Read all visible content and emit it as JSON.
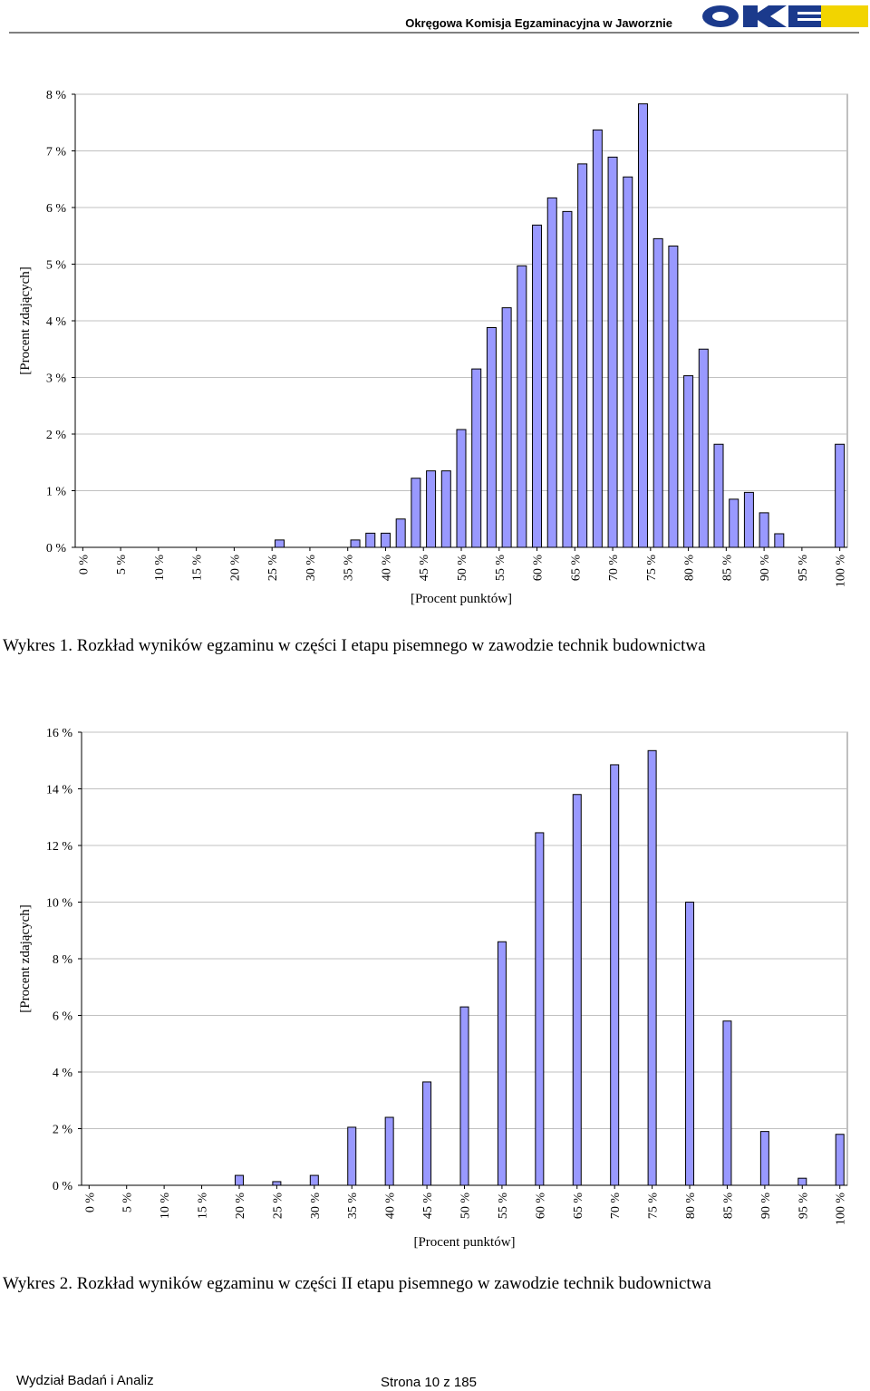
{
  "header": {
    "title": "Okręgowa Komisja Egzaminacyjna w Jaworznie"
  },
  "chart_data": [
    {
      "type": "bar",
      "title": "Wykres 1. Rozkład wyników egzaminu w części I etapu pisemnego w zawodzie technik budownictwa",
      "x_label": "[Procent punktów]",
      "y_label": "[Procent zdających]",
      "x": [
        0,
        2,
        4,
        6,
        8,
        10,
        12,
        14,
        16,
        18,
        20,
        22,
        24,
        26,
        28,
        30,
        32,
        34,
        36,
        38,
        40,
        42,
        44,
        46,
        48,
        50,
        52,
        54,
        56,
        58,
        60,
        62,
        64,
        66,
        68,
        70,
        72,
        74,
        76,
        78,
        80,
        82,
        84,
        86,
        88,
        90,
        92,
        94,
        96,
        98,
        100
      ],
      "values": [
        0,
        0,
        0,
        0,
        0,
        0,
        0,
        0,
        0,
        0,
        0,
        0,
        0,
        0.13,
        0,
        0,
        0,
        0,
        0.13,
        0.25,
        0.25,
        0.5,
        1.22,
        1.35,
        1.35,
        2.08,
        3.15,
        3.88,
        4.23,
        4.97,
        5.69,
        6.17,
        5.93,
        6.77,
        7.37,
        6.89,
        6.54,
        7.83,
        5.45,
        5.32,
        3.03,
        3.5,
        1.82,
        0.85,
        0.97,
        0.61,
        0.24,
        0,
        0,
        0,
        1.82
      ],
      "color": "#9999ff",
      "xlim": [
        -1,
        101
      ],
      "xticks": [
        {
          "value": 0,
          "label": "0 %"
        },
        {
          "value": 5,
          "label": "5 %"
        },
        {
          "value": 10,
          "label": "10 %"
        },
        {
          "value": 15,
          "label": "15 %"
        },
        {
          "value": 20,
          "label": "20 %"
        },
        {
          "value": 25,
          "label": "25 %"
        },
        {
          "value": 30,
          "label": "30 %"
        },
        {
          "value": 35,
          "label": "35 %"
        },
        {
          "value": 40,
          "label": "40 %"
        },
        {
          "value": 45,
          "label": "45 %"
        },
        {
          "value": 50,
          "label": "50 %"
        },
        {
          "value": 55,
          "label": "55 %"
        },
        {
          "value": 60,
          "label": "60 %"
        },
        {
          "value": 65,
          "label": "65 %"
        },
        {
          "value": 70,
          "label": "70 %"
        },
        {
          "value": 75,
          "label": "75 %"
        },
        {
          "value": 80,
          "label": "80 %"
        },
        {
          "value": 85,
          "label": "85 %"
        },
        {
          "value": 90,
          "label": "90 %"
        },
        {
          "value": 95,
          "label": "95 %"
        },
        {
          "value": 100,
          "label": "100 %"
        }
      ],
      "ylim": [
        0,
        8
      ],
      "yticks": [
        {
          "value": 0,
          "label": "0 %"
        },
        {
          "value": 1,
          "label": "1 %"
        },
        {
          "value": 2,
          "label": "2 %"
        },
        {
          "value": 3,
          "label": "3 %"
        },
        {
          "value": 4,
          "label": "4 %"
        },
        {
          "value": 5,
          "label": "5 %"
        },
        {
          "value": 6,
          "label": "6 %"
        },
        {
          "value": 7,
          "label": "7 %"
        },
        {
          "value": 8,
          "label": "8 %"
        }
      ],
      "grid": true
    },
    {
      "type": "bar",
      "title": "Wykres 2. Rozkład wyników egzaminu w części II etapu pisemnego w zawodzie technik budownictwa",
      "x_label": "[Procent punktów]",
      "y_label": "[Procent zdających]",
      "x": [
        0,
        5,
        10,
        15,
        20,
        25,
        30,
        35,
        40,
        45,
        50,
        55,
        60,
        65,
        70,
        75,
        80,
        85,
        90,
        95,
        100
      ],
      "values": [
        0,
        0,
        0,
        0,
        0.35,
        0.13,
        0.35,
        2.05,
        2.4,
        3.65,
        6.3,
        8.6,
        12.45,
        13.8,
        14.85,
        15.35,
        10.0,
        5.8,
        1.9,
        0.25,
        1.8
      ],
      "color": "#9999ff",
      "xlim": [
        -1,
        101
      ],
      "xticks": [
        {
          "value": 0,
          "label": "0 %"
        },
        {
          "value": 5,
          "label": "5 %"
        },
        {
          "value": 10,
          "label": "10 %"
        },
        {
          "value": 15,
          "label": "15 %"
        },
        {
          "value": 20,
          "label": "20 %"
        },
        {
          "value": 25,
          "label": "25 %"
        },
        {
          "value": 30,
          "label": "30 %"
        },
        {
          "value": 35,
          "label": "35 %"
        },
        {
          "value": 40,
          "label": "40 %"
        },
        {
          "value": 45,
          "label": "45 %"
        },
        {
          "value": 50,
          "label": "50 %"
        },
        {
          "value": 55,
          "label": "55 %"
        },
        {
          "value": 60,
          "label": "60 %"
        },
        {
          "value": 65,
          "label": "65 %"
        },
        {
          "value": 70,
          "label": "70 %"
        },
        {
          "value": 75,
          "label": "75 %"
        },
        {
          "value": 80,
          "label": "80 %"
        },
        {
          "value": 85,
          "label": "85 %"
        },
        {
          "value": 90,
          "label": "90 %"
        },
        {
          "value": 95,
          "label": "95 %"
        },
        {
          "value": 100,
          "label": "100 %"
        }
      ],
      "ylim": [
        0,
        16
      ],
      "yticks": [
        {
          "value": 0,
          "label": "0 %"
        },
        {
          "value": 2,
          "label": "2 %"
        },
        {
          "value": 4,
          "label": "4 %"
        },
        {
          "value": 6,
          "label": "6 %"
        },
        {
          "value": 8,
          "label": "8 %"
        },
        {
          "value": 10,
          "label": "10 %"
        },
        {
          "value": 12,
          "label": "12 %"
        },
        {
          "value": 14,
          "label": "14 %"
        },
        {
          "value": 16,
          "label": "16 %"
        }
      ],
      "grid": true
    }
  ],
  "footer": {
    "left": "Wydział Badań i Analiz",
    "right": "Strona 10 z 185"
  }
}
